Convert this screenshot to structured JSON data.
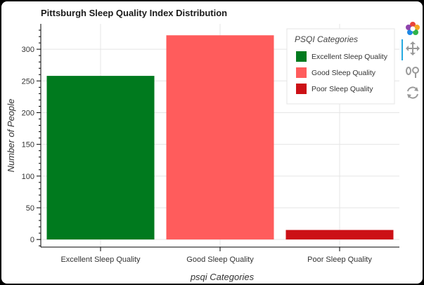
{
  "chart_data": {
    "type": "bar",
    "title": "Pittsburgh Sleep Quality Index Distribution",
    "xlabel": "psqi Categories",
    "ylabel": "Number of People",
    "categories": [
      "Excellent Sleep Quality",
      "Good Sleep Quality",
      "Poor Sleep Quality"
    ],
    "values": [
      258,
      322,
      15
    ],
    "colors": [
      "#007a1e",
      "#ff5c5c",
      "#cc1016"
    ],
    "ylim": [
      -12,
      340
    ],
    "yticks": [
      0,
      50,
      100,
      150,
      200,
      250,
      300
    ],
    "grid": true,
    "legend": {
      "title": "PSQI Categories",
      "placement": "top-right",
      "items": [
        {
          "label": "Excellent Sleep Quality",
          "color": "#007a1e"
        },
        {
          "label": "Good Sleep Quality",
          "color": "#ff5c5c"
        },
        {
          "label": "Poor Sleep Quality",
          "color": "#cc1016"
        }
      ]
    }
  },
  "toolbar": {
    "icons": [
      "bokeh-logo-icon",
      "pan-icon",
      "wheel-zoom-icon",
      "reset-icon"
    ]
  }
}
